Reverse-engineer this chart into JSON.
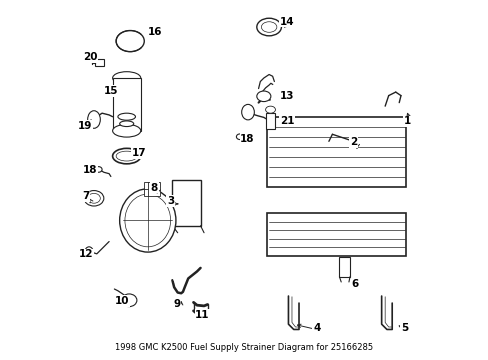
{
  "title": "1998 GMC K2500 Fuel Supply Strainer Diagram for 25166285",
  "bg_color": "#ffffff",
  "border_color": "#000000",
  "text_color": "#000000",
  "fig_width": 4.89,
  "fig_height": 3.6,
  "dpi": 100
}
